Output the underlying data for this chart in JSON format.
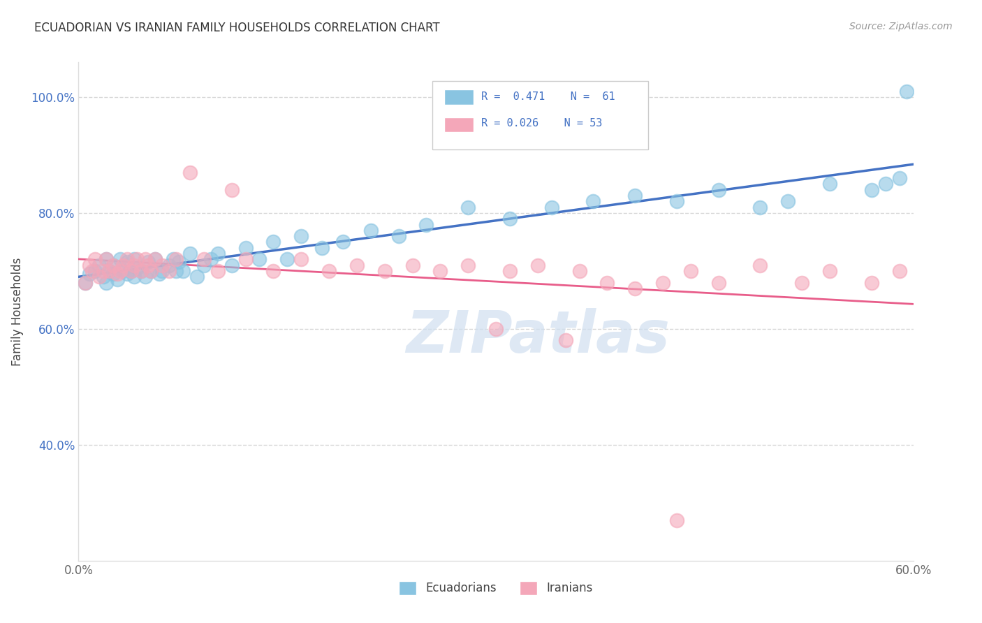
{
  "title": "ECUADORIAN VS IRANIAN FAMILY HOUSEHOLDS CORRELATION CHART",
  "ylabel": "Family Households",
  "source": "Source: ZipAtlas.com",
  "watermark": "ZIPatlas",
  "legend_label1": "Ecuadorians",
  "legend_label2": "Iranians",
  "blue_scatter_color": "#89c4e1",
  "pink_scatter_color": "#f4a7b9",
  "blue_line_color": "#4472c4",
  "pink_line_color": "#e85d8a",
  "ytick_color": "#4472c4",
  "xlim": [
    0.0,
    0.6
  ],
  "ylim": [
    0.2,
    1.06
  ],
  "yticks": [
    0.4,
    0.6,
    0.8,
    1.0
  ],
  "ytick_labels": [
    "40.0%",
    "60.0%",
    "80.0%",
    "100.0%"
  ],
  "xticks": [
    0.0,
    0.1,
    0.2,
    0.3,
    0.4,
    0.5,
    0.6
  ],
  "xtick_labels": [
    "0.0%",
    "",
    "",
    "",
    "",
    "",
    "60.0%"
  ],
  "blue_x": [
    0.005,
    0.008,
    0.012,
    0.015,
    0.018,
    0.02,
    0.02,
    0.022,
    0.025,
    0.025,
    0.028,
    0.03,
    0.032,
    0.035,
    0.035,
    0.038,
    0.04,
    0.04,
    0.042,
    0.045,
    0.048,
    0.05,
    0.052,
    0.055,
    0.058,
    0.06,
    0.065,
    0.068,
    0.07,
    0.072,
    0.075,
    0.08,
    0.085,
    0.09,
    0.095,
    0.1,
    0.11,
    0.12,
    0.13,
    0.14,
    0.15,
    0.16,
    0.175,
    0.19,
    0.21,
    0.23,
    0.25,
    0.28,
    0.31,
    0.34,
    0.37,
    0.4,
    0.43,
    0.46,
    0.49,
    0.51,
    0.54,
    0.57,
    0.58,
    0.59,
    0.595
  ],
  "blue_y": [
    0.68,
    0.695,
    0.7,
    0.71,
    0.69,
    0.72,
    0.68,
    0.7,
    0.71,
    0.695,
    0.685,
    0.72,
    0.7,
    0.715,
    0.695,
    0.7,
    0.72,
    0.69,
    0.705,
    0.7,
    0.69,
    0.715,
    0.7,
    0.72,
    0.695,
    0.7,
    0.71,
    0.72,
    0.7,
    0.715,
    0.7,
    0.73,
    0.69,
    0.71,
    0.72,
    0.73,
    0.71,
    0.74,
    0.72,
    0.75,
    0.72,
    0.76,
    0.74,
    0.75,
    0.77,
    0.76,
    0.78,
    0.81,
    0.79,
    0.81,
    0.82,
    0.83,
    0.82,
    0.84,
    0.81,
    0.82,
    0.85,
    0.84,
    0.85,
    0.86,
    1.01
  ],
  "pink_x": [
    0.005,
    0.008,
    0.01,
    0.012,
    0.015,
    0.018,
    0.02,
    0.022,
    0.025,
    0.028,
    0.03,
    0.032,
    0.035,
    0.038,
    0.04,
    0.042,
    0.045,
    0.048,
    0.05,
    0.052,
    0.055,
    0.06,
    0.065,
    0.07,
    0.08,
    0.09,
    0.1,
    0.11,
    0.12,
    0.14,
    0.16,
    0.18,
    0.2,
    0.22,
    0.24,
    0.26,
    0.28,
    0.31,
    0.33,
    0.36,
    0.38,
    0.4,
    0.42,
    0.44,
    0.46,
    0.49,
    0.52,
    0.54,
    0.57,
    0.59,
    0.3,
    0.35,
    0.43
  ],
  "pink_y": [
    0.68,
    0.71,
    0.7,
    0.72,
    0.69,
    0.7,
    0.72,
    0.7,
    0.71,
    0.695,
    0.7,
    0.71,
    0.72,
    0.7,
    0.71,
    0.72,
    0.7,
    0.72,
    0.71,
    0.7,
    0.72,
    0.71,
    0.7,
    0.72,
    0.87,
    0.72,
    0.7,
    0.84,
    0.72,
    0.7,
    0.72,
    0.7,
    0.71,
    0.7,
    0.71,
    0.7,
    0.71,
    0.7,
    0.71,
    0.7,
    0.68,
    0.67,
    0.68,
    0.7,
    0.68,
    0.71,
    0.68,
    0.7,
    0.68,
    0.7,
    0.6,
    0.58,
    0.27
  ]
}
